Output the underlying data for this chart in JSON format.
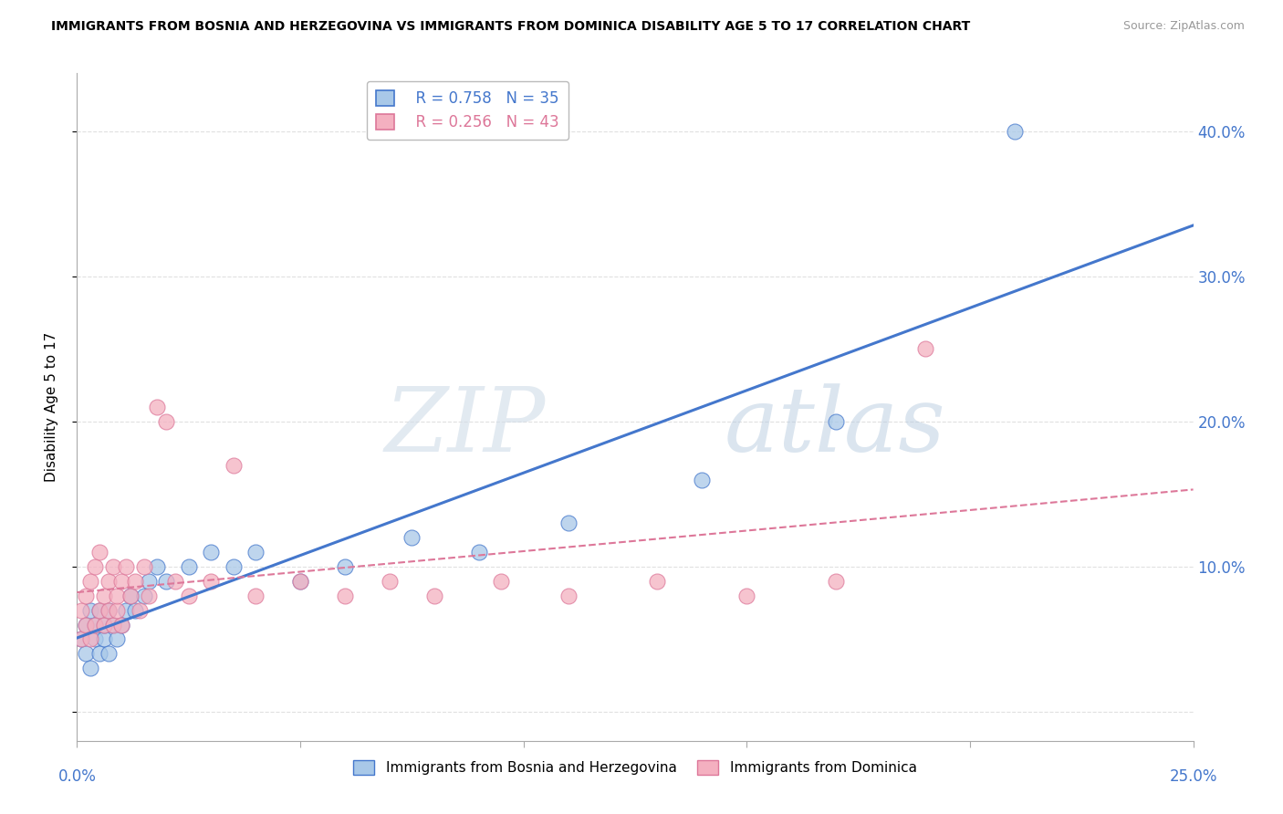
{
  "title": "IMMIGRANTS FROM BOSNIA AND HERZEGOVINA VS IMMIGRANTS FROM DOMINICA DISABILITY AGE 5 TO 17 CORRELATION CHART",
  "source": "Source: ZipAtlas.com",
  "ylabel": "Disability Age 5 to 17",
  "xlim": [
    0.0,
    0.25
  ],
  "ylim": [
    -0.02,
    0.44
  ],
  "legend_r1": "R = 0.758   N = 35",
  "legend_r2": "R = 0.256   N = 43",
  "color_blue": "#a8c8e8",
  "color_pink": "#f4b0c0",
  "line_blue": "#4477cc",
  "line_pink": "#dd7799",
  "bosnia_x": [
    0.001,
    0.002,
    0.002,
    0.003,
    0.003,
    0.004,
    0.004,
    0.005,
    0.005,
    0.006,
    0.006,
    0.007,
    0.007,
    0.008,
    0.009,
    0.01,
    0.011,
    0.012,
    0.013,
    0.015,
    0.016,
    0.018,
    0.02,
    0.025,
    0.03,
    0.035,
    0.04,
    0.05,
    0.06,
    0.075,
    0.09,
    0.11,
    0.14,
    0.17,
    0.21
  ],
  "bosnia_y": [
    0.05,
    0.04,
    0.06,
    0.03,
    0.07,
    0.05,
    0.06,
    0.04,
    0.07,
    0.05,
    0.06,
    0.04,
    0.07,
    0.06,
    0.05,
    0.06,
    0.07,
    0.08,
    0.07,
    0.08,
    0.09,
    0.1,
    0.09,
    0.1,
    0.11,
    0.1,
    0.11,
    0.09,
    0.1,
    0.12,
    0.11,
    0.13,
    0.16,
    0.2,
    0.4
  ],
  "dominica_x": [
    0.001,
    0.001,
    0.002,
    0.002,
    0.003,
    0.003,
    0.004,
    0.004,
    0.005,
    0.005,
    0.006,
    0.006,
    0.007,
    0.007,
    0.008,
    0.008,
    0.009,
    0.009,
    0.01,
    0.01,
    0.011,
    0.012,
    0.013,
    0.014,
    0.015,
    0.016,
    0.018,
    0.02,
    0.022,
    0.025,
    0.03,
    0.035,
    0.04,
    0.05,
    0.06,
    0.07,
    0.08,
    0.095,
    0.11,
    0.13,
    0.15,
    0.17,
    0.19
  ],
  "dominica_y": [
    0.05,
    0.07,
    0.06,
    0.08,
    0.05,
    0.09,
    0.06,
    0.1,
    0.07,
    0.11,
    0.06,
    0.08,
    0.07,
    0.09,
    0.06,
    0.1,
    0.07,
    0.08,
    0.06,
    0.09,
    0.1,
    0.08,
    0.09,
    0.07,
    0.1,
    0.08,
    0.21,
    0.2,
    0.09,
    0.08,
    0.09,
    0.17,
    0.08,
    0.09,
    0.08,
    0.09,
    0.08,
    0.09,
    0.08,
    0.09,
    0.08,
    0.09,
    0.25
  ],
  "watermark_zip": "ZIP",
  "watermark_atlas": "atlas",
  "background_color": "#ffffff",
  "grid_color": "#e0e0e0"
}
